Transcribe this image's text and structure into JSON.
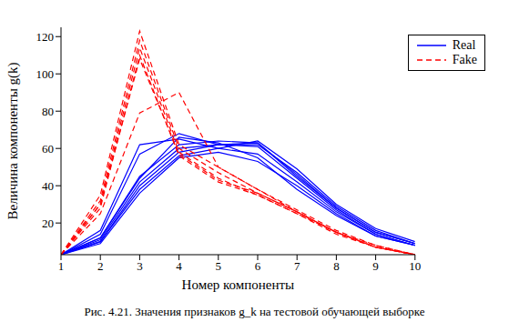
{
  "chart_data": {
    "type": "line",
    "caption": "Рис. 4.21. Значения признаков g_k на тестовой обучающей выборке",
    "x_label": "Номер компоненты",
    "y_label": "Величина компоненты g(k)",
    "x": [
      1,
      2,
      3,
      4,
      5,
      6,
      7,
      8,
      9,
      10
    ],
    "xlim": [
      1,
      10
    ],
    "xticks": [
      1,
      2,
      3,
      4,
      5,
      6,
      7,
      8,
      9,
      10
    ],
    "ylim": [
      3,
      125
    ],
    "yticks": [
      20,
      40,
      60,
      80,
      100,
      120
    ],
    "grid": false,
    "legend": "upper right",
    "series": [
      {
        "name": "Real",
        "color": "#0000ff",
        "line_style": "solid",
        "values": [
          [
            3,
            16,
            62,
            65,
            60,
            64,
            49,
            30,
            17,
            10
          ],
          [
            3,
            14,
            57,
            68,
            62,
            62,
            47,
            29,
            16,
            9
          ],
          [
            3,
            12,
            45,
            62,
            64,
            63,
            46,
            28,
            15,
            9
          ],
          [
            3,
            11,
            42,
            60,
            62,
            63,
            45,
            28,
            15,
            9
          ],
          [
            3,
            10,
            40,
            58,
            62,
            61,
            44,
            27,
            14,
            8
          ],
          [
            3,
            10,
            38,
            56,
            60,
            57,
            42,
            26,
            14,
            8
          ],
          [
            3,
            9,
            36,
            55,
            58,
            53,
            40,
            25,
            13,
            8
          ],
          [
            3,
            12,
            44,
            66,
            63,
            55,
            38,
            24,
            13,
            8
          ]
        ]
      },
      {
        "name": "Fake",
        "color": "#ff0000",
        "line_style": "dashed",
        "values": [
          [
            3,
            35,
            123,
            62,
            50,
            38,
            27,
            16,
            8,
            3
          ],
          [
            3,
            32,
            118,
            60,
            47,
            36,
            26,
            15,
            7,
            3
          ],
          [
            3,
            30,
            114,
            58,
            44,
            35,
            25,
            15,
            7,
            3
          ],
          [
            3,
            28,
            110,
            56,
            42,
            35,
            25,
            14,
            7,
            3
          ],
          [
            3,
            25,
            79,
            90,
            50,
            38,
            26,
            15,
            8,
            3
          ],
          [
            3,
            30,
            108,
            57,
            43,
            36,
            26,
            15,
            7,
            3
          ]
        ]
      }
    ]
  }
}
